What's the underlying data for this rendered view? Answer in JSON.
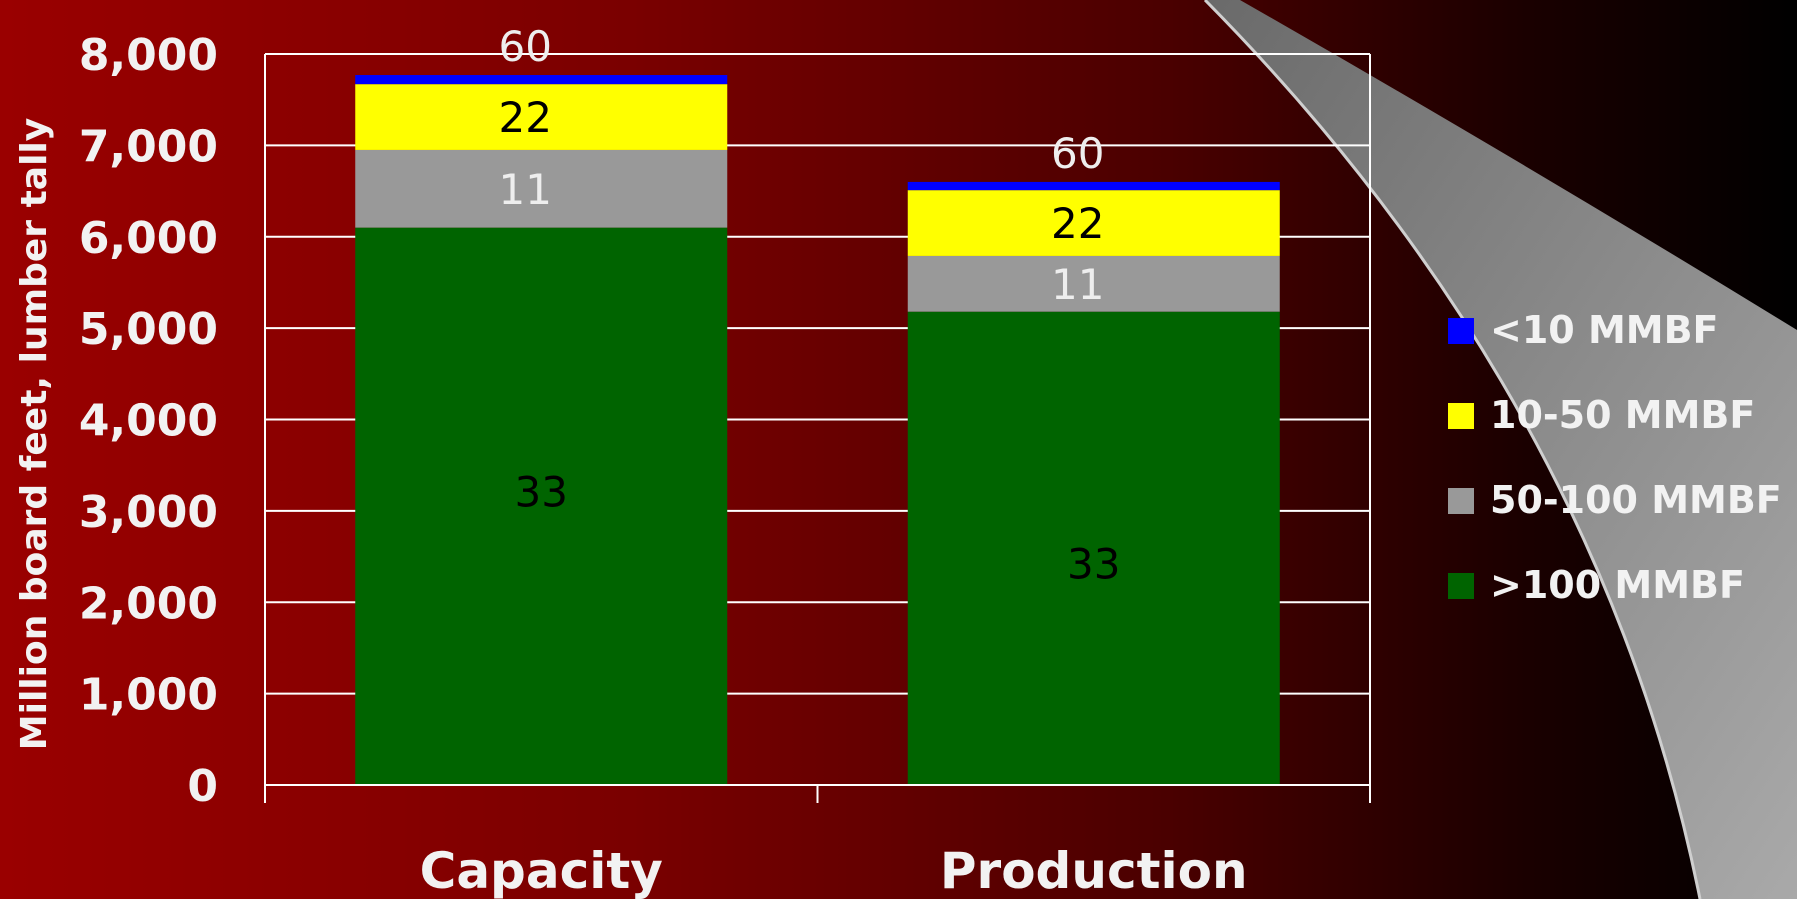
{
  "chart_data": {
    "type": "bar",
    "stacked": true,
    "categories": [
      "Capacity",
      "Production"
    ],
    "series": [
      {
        "name": ">100 MMBF",
        "color": "#006400",
        "values": [
          6100,
          5180
        ],
        "labels": [
          "33",
          "33"
        ],
        "label_color": "#000000"
      },
      {
        "name": "50-100 MMBF",
        "color": "#999999",
        "values": [
          850,
          610
        ],
        "labels": [
          "11",
          "11"
        ],
        "label_color": "#eeeeee"
      },
      {
        "name": "10-50 MMBF",
        "color": "#ffff00",
        "values": [
          720,
          720
        ],
        "labels": [
          "22",
          "22"
        ],
        "label_color": "#000000"
      },
      {
        "name": "<10 MMBF",
        "color": "#0000ff",
        "values": [
          100,
          90
        ],
        "labels": [
          "60",
          "60"
        ],
        "label_color": "#eeeeee"
      }
    ],
    "legend_order": [
      "<10 MMBF",
      "10-50 MMBF",
      "50-100 MMBF",
      ">100 MMBF"
    ],
    "yticks": [
      "0",
      "1,000",
      "2,000",
      "3,000",
      "4,000",
      "5,000",
      "6,000",
      "7,000",
      "8,000"
    ],
    "ylim": [
      0,
      8000
    ],
    "ylabel": "Million board feet, lumber tally",
    "xlabel": "",
    "grid": true,
    "legend_position": "right"
  }
}
